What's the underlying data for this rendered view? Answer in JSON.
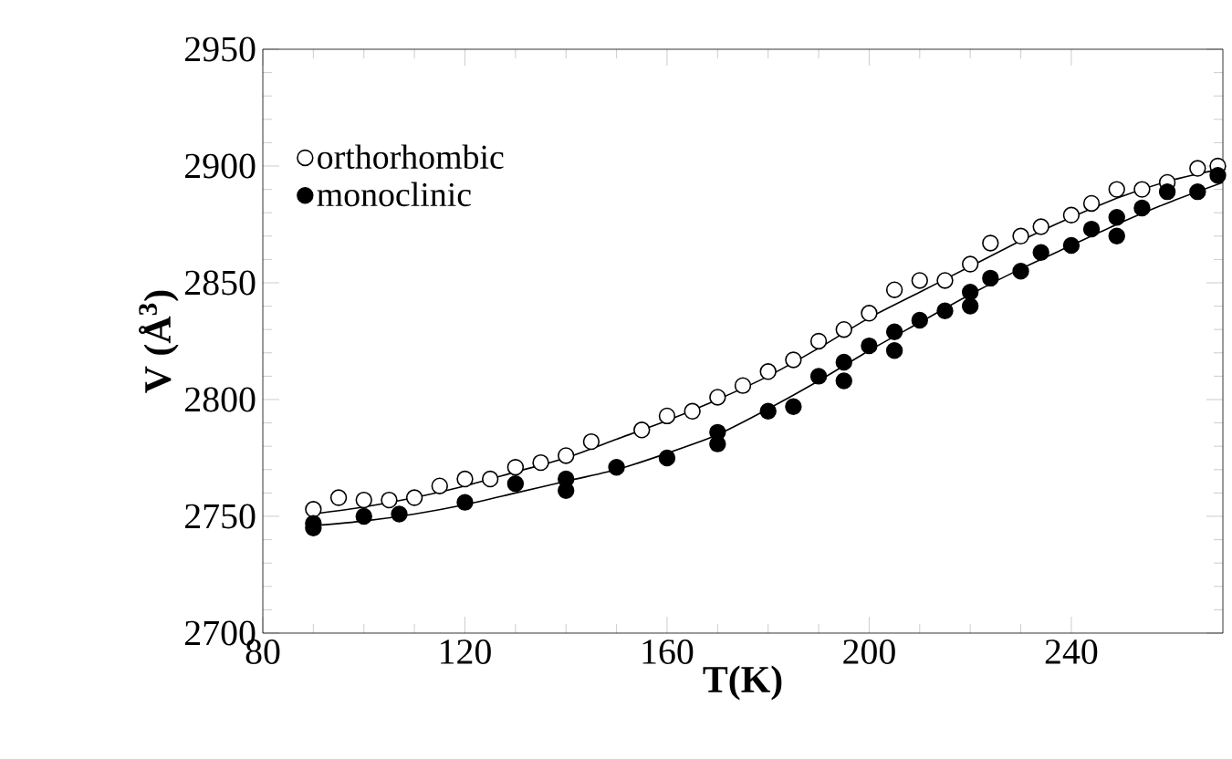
{
  "chart_data": {
    "type": "scatter",
    "xlabel": "T(K)",
    "ylabel": "V (Å$^{3}$)",
    "xlim": [
      80,
      270
    ],
    "xticks": [
      80,
      120,
      160,
      200,
      240
    ],
    "ylim": [
      2700,
      2950
    ],
    "yticks": [
      2700,
      2750,
      2800,
      2850,
      2900,
      2950
    ],
    "legend": "top left",
    "grid": false,
    "marker": "circle",
    "series": [
      {
        "name": "orthorhombic",
        "color": "#000000",
        "x": [
          90,
          95,
          100,
          105,
          110,
          115,
          120,
          125,
          130,
          135,
          140,
          145,
          155,
          160,
          165,
          170,
          175,
          180,
          185,
          190,
          195,
          200,
          205,
          210,
          215,
          220,
          224,
          230,
          234,
          240,
          244,
          249,
          254,
          259,
          265,
          269
        ],
        "values": [
          2753,
          2758,
          2757,
          2757,
          2758,
          2763,
          2766,
          2766,
          2771,
          2773,
          2776,
          2782,
          2787,
          2793,
          2795,
          2801,
          2806,
          2812,
          2817,
          2825,
          2830,
          2837,
          2847,
          2851,
          2851,
          2858,
          2867,
          2870,
          2874,
          2879,
          2884,
          2890,
          2890,
          2893,
          2899,
          2900
        ]
      },
      {
        "name": "monoclinic",
        "color": "#000000",
        "x": [
          90,
          90,
          100,
          107,
          120,
          130,
          140,
          140,
          150,
          160,
          170,
          170,
          180,
          185,
          190,
          195,
          195,
          200,
          205,
          205,
          210,
          215,
          220,
          220,
          224,
          230,
          234,
          240,
          244,
          249,
          249,
          254,
          259,
          265,
          269
        ],
        "values": [
          2747,
          2745,
          2750,
          2751,
          2756,
          2764,
          2766,
          2761,
          2771,
          2775,
          2786,
          2781,
          2795,
          2797,
          2810,
          2816,
          2808,
          2823,
          2829,
          2821,
          2834,
          2838,
          2846,
          2840,
          2852,
          2855,
          2863,
          2866,
          2873,
          2878,
          2870,
          2882,
          2889,
          2889,
          2896
        ]
      },
      {
        "type": "line",
        "marker": "none",
        "color": "#000000",
        "x": [
          90,
          100,
          110,
          120,
          130,
          140,
          150,
          160,
          170,
          180,
          190,
          200,
          210,
          220,
          230,
          240,
          250,
          260,
          270
        ],
        "values": [
          2751,
          2754,
          2758,
          2763,
          2769,
          2775,
          2783,
          2791,
          2800,
          2810,
          2822,
          2835,
          2846,
          2857,
          2868,
          2878,
          2887,
          2894,
          2899
        ]
      },
      {
        "type": "line",
        "marker": "none",
        "color": "#000000",
        "x": [
          90,
          100,
          110,
          120,
          130,
          140,
          150,
          160,
          170,
          180,
          190,
          200,
          210,
          220,
          230,
          240,
          250,
          260,
          270
        ],
        "values": [
          2746,
          2748,
          2751,
          2755,
          2760,
          2765,
          2770,
          2777,
          2785,
          2796,
          2808,
          2821,
          2833,
          2845,
          2856,
          2866,
          2876,
          2885,
          2893
        ]
      }
    ]
  }
}
